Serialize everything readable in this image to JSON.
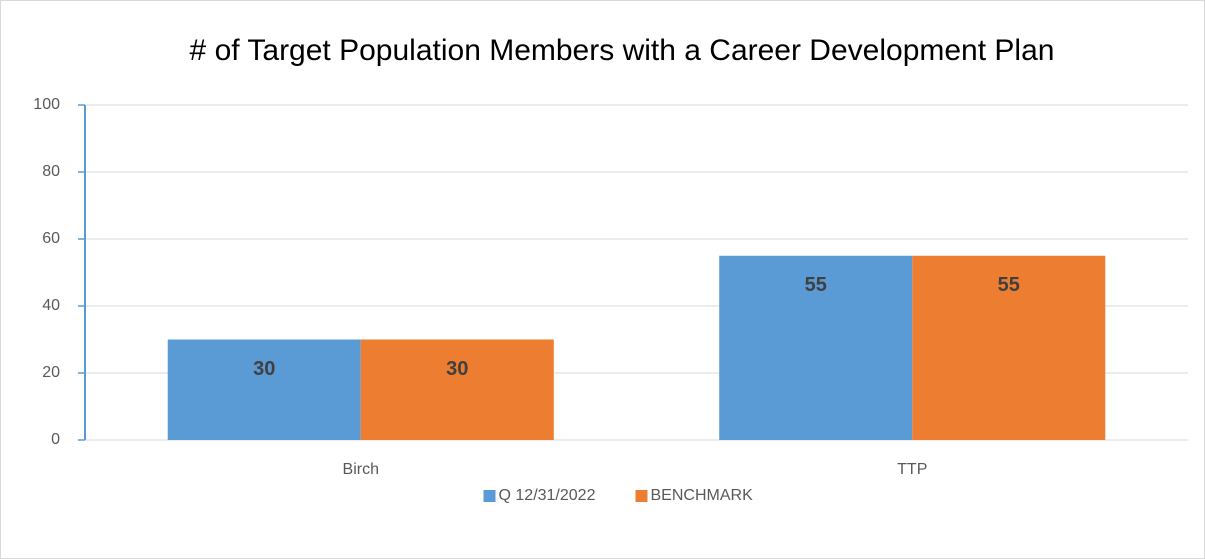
{
  "chart_data": {
    "type": "bar",
    "title": "# of Target Population Members with a Career Development Plan",
    "categories": [
      "Birch",
      "TTP"
    ],
    "series": [
      {
        "name": "Q 12/31/2022",
        "color": "#5b9bd5",
        "values": [
          30,
          55
        ]
      },
      {
        "name": "BENCHMARK",
        "color": "#ed7d31",
        "values": [
          30,
          55
        ]
      }
    ],
    "ylim": [
      0,
      100
    ],
    "yticks": [
      0,
      20,
      40,
      60,
      80,
      100
    ],
    "grid": true,
    "legend": "bottom"
  }
}
